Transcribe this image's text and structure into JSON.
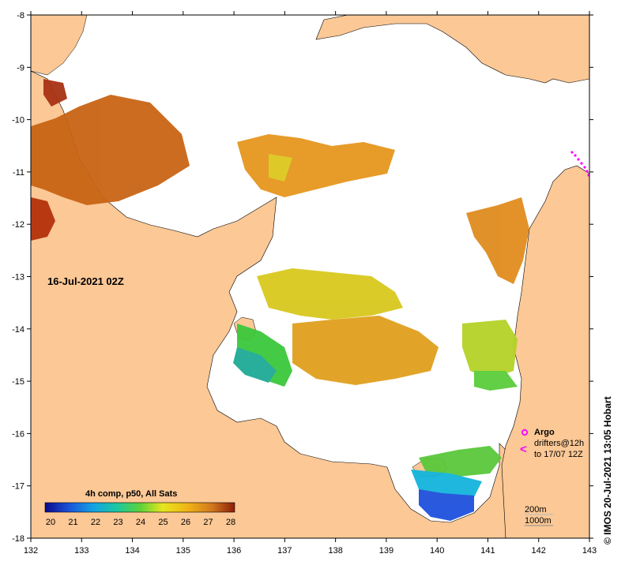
{
  "map": {
    "date_label": "16-Jul-2021 02Z",
    "composite_label": "4h comp, p50, All Sats",
    "credit": "© IMOS 20-Jul-2021 13:05 Hobart",
    "longitude_ticks": [
      "132",
      "133",
      "134",
      "135",
      "136",
      "137",
      "138",
      "139",
      "140",
      "141",
      "142",
      "143"
    ],
    "latitude_ticks": [
      "-8",
      "-9",
      "-10",
      "-11",
      "-12",
      "-13",
      "-14",
      "-15",
      "-16",
      "-17",
      "-18"
    ],
    "colorbar": {
      "labels": [
        "20",
        "21",
        "22",
        "23",
        "24",
        "25",
        "26",
        "27",
        "28"
      ],
      "min": 20,
      "max": 28
    },
    "legend": {
      "argo_label": "Argo",
      "drifters_label": "drifters@12h",
      "drifters_to_label": "to 17/07 12Z",
      "depth_200_label": "200m",
      "depth_1000_label": "1000m",
      "argo_color": "#ff00ff",
      "drifter_color": "#ff00ff"
    },
    "colors": {
      "land": "#fbc896",
      "sea_nodata": "#ffffff"
    }
  }
}
